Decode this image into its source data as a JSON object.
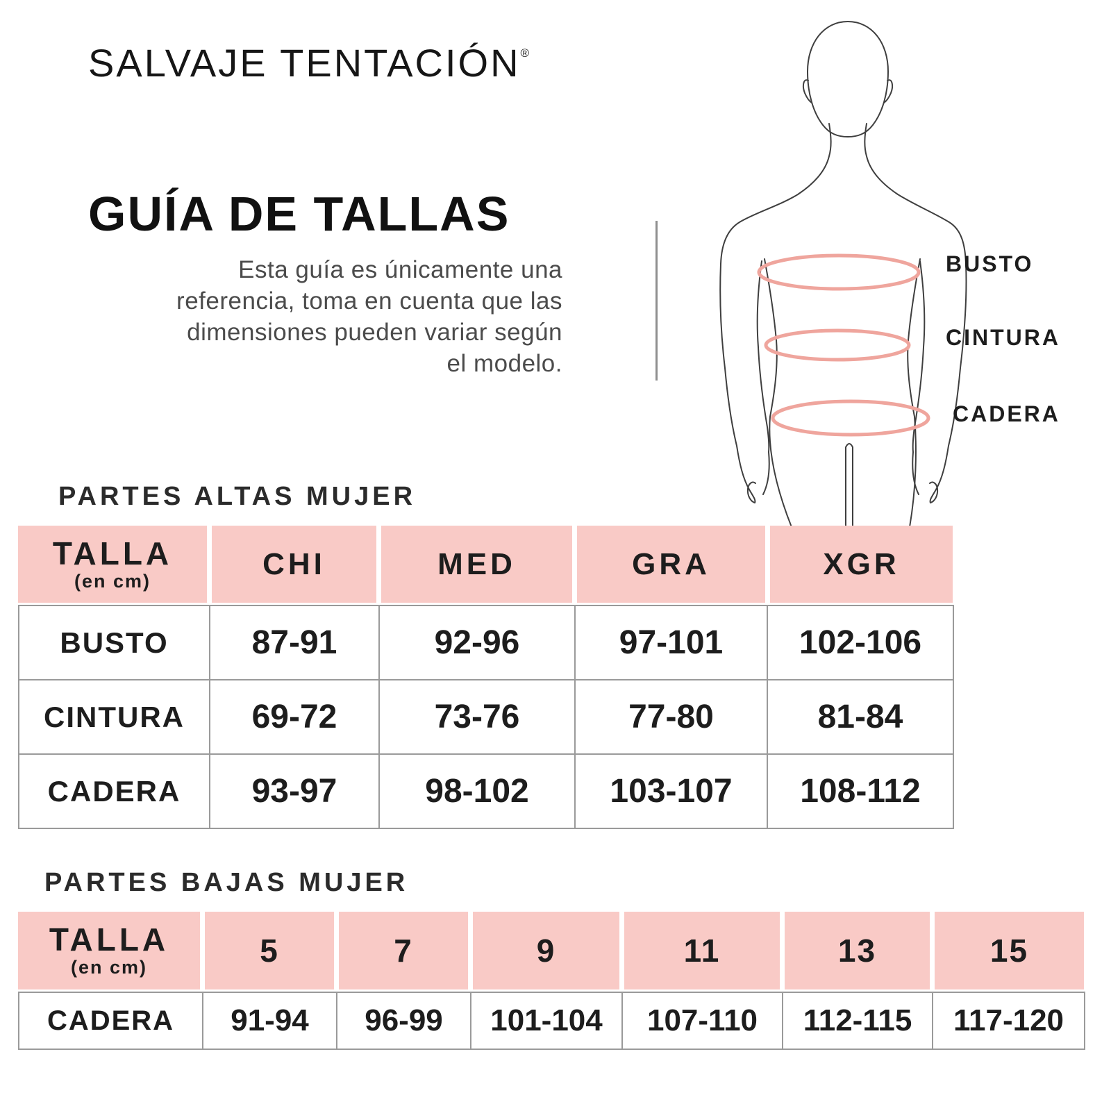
{
  "brand": {
    "name": "SALVAJE TENTACIÓN",
    "trademark": "®"
  },
  "page": {
    "title": "GUÍA DE TALLAS",
    "intro_lines": [
      "Esta guía es únicamente una",
      "referencia, toma en cuenta que las",
      "dimensiones pueden variar según",
      "el modelo."
    ]
  },
  "figure": {
    "bust_label": "BUSTO",
    "waist_label": "CINTURA",
    "hip_label": "CADERA"
  },
  "colors": {
    "header_pink": "#f9cac6",
    "measure_line_pink": "#efa59d",
    "grid_gray": "#9a9a9a",
    "divider_gray": "#8f8f8f",
    "text_dark": "#1d1d1d",
    "text_muted": "#4b4b4b"
  },
  "tables": {
    "tops": {
      "section_title": "PARTES ALTAS MUJER",
      "header": {
        "first": {
          "line1": "TALLA",
          "line2": "(en cm)"
        },
        "sizes": [
          "CHI",
          "MED",
          "GRA",
          "XGR"
        ]
      },
      "rows": [
        {
          "label": "BUSTO",
          "values": [
            "87-91",
            "92-96",
            "97-101",
            "102-106"
          ]
        },
        {
          "label": "CINTURA",
          "values": [
            "69-72",
            "73-76",
            "77-80",
            "81-84"
          ]
        },
        {
          "label": "CADERA",
          "values": [
            "93-97",
            "98-102",
            "103-107",
            "108-112"
          ]
        }
      ]
    },
    "bottoms": {
      "section_title": "PARTES BAJAS MUJER",
      "header": {
        "first": {
          "line1": "TALLA",
          "line2": "(en cm)"
        },
        "sizes": [
          "5",
          "7",
          "9",
          "11",
          "13",
          "15"
        ]
      },
      "rows": [
        {
          "label": "CADERA",
          "values": [
            "91-94",
            "96-99",
            "101-104",
            "107-110",
            "112-115",
            "117-120"
          ]
        }
      ]
    }
  }
}
